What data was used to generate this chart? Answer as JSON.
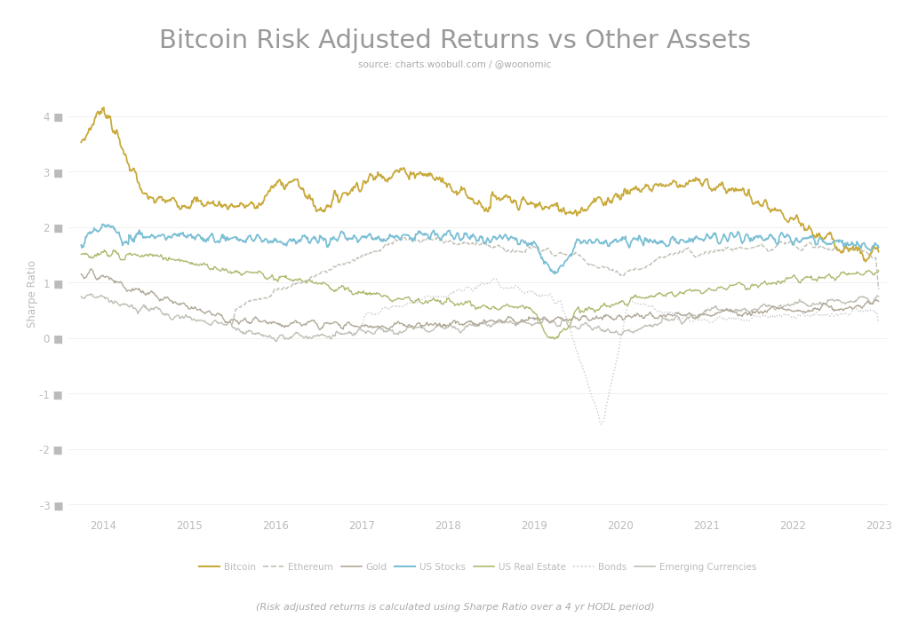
{
  "title": "Bitcoin Risk Adjusted Returns vs Other Assets",
  "subtitle": "source: charts.woobull.com / @woonomic",
  "footnote": "(Risk adjusted returns is calculated using Sharpe Ratio over a 4 yr HODL period)",
  "ylabel": "Sharpe Ratio",
  "background_color": "#ffffff",
  "title_color": "#aaaaaa",
  "subtitle_color": "#aaaaaa",
  "tick_color": "#bbbbbb",
  "grid_color": "#eeeeee",
  "series": {
    "Bitcoin": {
      "color": "#c8a93a",
      "lw": 1.3,
      "ls": "solid",
      "zorder": 6
    },
    "Ethereum": {
      "color": "#c0bfb5",
      "lw": 1.0,
      "ls": "dashed",
      "zorder": 5
    },
    "Gold": {
      "color": "#b0a898",
      "lw": 1.0,
      "ls": "solid",
      "zorder": 3
    },
    "US Stocks": {
      "color": "#7bbfd4",
      "lw": 1.3,
      "ls": "solid",
      "zorder": 7
    },
    "US Real Estate": {
      "color": "#b0b870",
      "lw": 1.0,
      "ls": "solid",
      "zorder": 4
    },
    "Bonds": {
      "color": "#c8c8c8",
      "lw": 1.0,
      "ls": "dotted",
      "zorder": 4
    },
    "Emerging Currencies": {
      "color": "#c0bfb5",
      "lw": 1.0,
      "ls": "solid",
      "zorder": 2
    }
  },
  "xmin": 2013.6,
  "xmax": 2023.1,
  "ymin": -3.2,
  "ymax": 4.8,
  "yticks": [
    -3,
    -2,
    -1,
    0,
    1,
    2,
    3,
    4
  ],
  "xticks": [
    2014,
    2015,
    2016,
    2017,
    2018,
    2019,
    2020,
    2021,
    2022,
    2023
  ]
}
